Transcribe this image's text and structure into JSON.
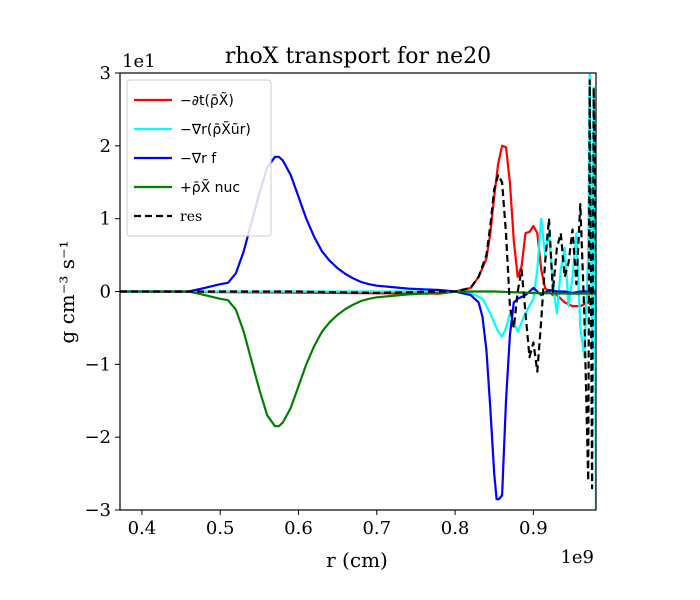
{
  "chart_data": {
    "type": "line",
    "title": "rhoX transport for ne20",
    "xlabel": "r (cm)",
    "ylabel": "g cm⁻³ s⁻¹",
    "x_offset_label": "1e9",
    "y_offset_label": "1e1",
    "xlim": [
      0.372,
      0.98
    ],
    "ylim": [
      -3,
      3
    ],
    "x_ticks": [
      0.4,
      0.5,
      0.6,
      0.7,
      0.8,
      0.9
    ],
    "x_tick_labels": [
      "0.4",
      "0.5",
      "0.6",
      "0.7",
      "0.8",
      "0.9"
    ],
    "y_ticks": [
      -3,
      -2,
      -1,
      0,
      1,
      2,
      3
    ],
    "y_tick_labels": [
      "−3",
      "−2",
      "−1",
      "0",
      "1",
      "2",
      "3"
    ],
    "grid": false,
    "legend_position": "top-left",
    "series": [
      {
        "name": "−∂t(ρ̄X̃)",
        "color": "#ff0000",
        "dash": "solid",
        "x": [
          0.372,
          0.78,
          0.8,
          0.82,
          0.83,
          0.84,
          0.845,
          0.85,
          0.855,
          0.86,
          0.865,
          0.87,
          0.875,
          0.88,
          0.885,
          0.89,
          0.895,
          0.9,
          0.905,
          0.91,
          0.915,
          0.92,
          0.925,
          0.93,
          0.94,
          0.95,
          0.96,
          0.97,
          0.975,
          0.98
        ],
        "y": [
          0,
          -0.03,
          0,
          0.05,
          0.2,
          0.45,
          0.8,
          1.3,
          1.75,
          2.0,
          1.98,
          1.5,
          0.7,
          0.2,
          0.35,
          0.8,
          0.82,
          0.9,
          0.8,
          0.3,
          0.05,
          0.0,
          -0.05,
          -0.05,
          -0.15,
          -0.2,
          -0.2,
          -0.15,
          -0.2,
          -0.1
        ]
      },
      {
        "name": "−∇r(ρ̄X̃ũr)",
        "color": "#00ffff",
        "dash": "solid",
        "x": [
          0.372,
          0.8,
          0.82,
          0.835,
          0.845,
          0.855,
          0.86,
          0.865,
          0.87,
          0.88,
          0.89,
          0.9,
          0.905,
          0.91,
          0.915,
          0.92,
          0.925,
          0.93,
          0.935,
          0.94,
          0.945,
          0.95,
          0.955,
          0.96,
          0.965,
          0.97,
          0.972,
          0.975,
          0.977,
          0.98
        ],
        "y": [
          0,
          0,
          -0.02,
          -0.1,
          -0.3,
          -0.55,
          -0.62,
          -0.5,
          -0.3,
          -0.55,
          -0.3,
          -0.1,
          0.3,
          1.0,
          0.5,
          0.8,
          0.1,
          -0.3,
          0.3,
          0.6,
          -0.2,
          0.2,
          0.8,
          -0.5,
          -0.9,
          0.5,
          3.0,
          -0.8,
          2.8,
          -3.0
        ]
      },
      {
        "name": "−∇r f",
        "color": "#0000ff",
        "dash": "solid",
        "x": [
          0.372,
          0.46,
          0.48,
          0.5,
          0.51,
          0.52,
          0.53,
          0.54,
          0.55,
          0.56,
          0.57,
          0.575,
          0.58,
          0.59,
          0.6,
          0.61,
          0.62,
          0.63,
          0.64,
          0.65,
          0.66,
          0.67,
          0.68,
          0.69,
          0.7,
          0.72,
          0.74,
          0.76,
          0.78,
          0.8,
          0.82,
          0.83,
          0.835,
          0.84,
          0.845,
          0.85,
          0.853,
          0.856,
          0.86,
          0.865,
          0.87,
          0.875,
          0.88,
          0.89,
          0.9,
          0.91,
          0.92,
          0.93,
          0.94,
          0.95,
          0.96,
          0.97,
          0.98
        ],
        "y": [
          0,
          0,
          0.05,
          0.1,
          0.12,
          0.25,
          0.55,
          0.95,
          1.35,
          1.7,
          1.85,
          1.85,
          1.8,
          1.6,
          1.3,
          1.0,
          0.75,
          0.55,
          0.42,
          0.32,
          0.24,
          0.18,
          0.13,
          0.1,
          0.08,
          0.06,
          0.04,
          0.03,
          0.02,
          0.0,
          -0.05,
          -0.15,
          -0.35,
          -0.8,
          -1.6,
          -2.5,
          -2.85,
          -2.85,
          -2.8,
          -1.5,
          -0.6,
          -0.15,
          -0.1,
          -0.05,
          0.05,
          -0.05,
          0.02,
          0.0,
          0.0,
          -0.02,
          0.0,
          0.0,
          0.0
        ]
      },
      {
        "name": "+ρ̄X̃ nuc",
        "color": "#008000",
        "dash": "solid",
        "x": [
          0.372,
          0.46,
          0.48,
          0.5,
          0.51,
          0.52,
          0.53,
          0.54,
          0.55,
          0.56,
          0.57,
          0.575,
          0.58,
          0.59,
          0.6,
          0.61,
          0.62,
          0.63,
          0.64,
          0.65,
          0.66,
          0.67,
          0.68,
          0.69,
          0.7,
          0.72,
          0.74,
          0.76,
          0.78,
          0.8,
          0.85,
          0.9,
          0.95,
          0.98
        ],
        "y": [
          0,
          0,
          -0.05,
          -0.1,
          -0.12,
          -0.25,
          -0.55,
          -0.95,
          -1.35,
          -1.7,
          -1.85,
          -1.85,
          -1.8,
          -1.6,
          -1.3,
          -1.0,
          -0.75,
          -0.55,
          -0.42,
          -0.32,
          -0.24,
          -0.18,
          -0.13,
          -0.1,
          -0.08,
          -0.06,
          -0.04,
          -0.03,
          -0.02,
          0.0,
          0.0,
          -0.02,
          -0.03,
          -0.03
        ]
      },
      {
        "name": "res",
        "color": "#000000",
        "dash": "dashed",
        "x": [
          0.372,
          0.6,
          0.7,
          0.78,
          0.8,
          0.82,
          0.83,
          0.84,
          0.845,
          0.85,
          0.855,
          0.86,
          0.865,
          0.87,
          0.875,
          0.88,
          0.885,
          0.89,
          0.895,
          0.9,
          0.905,
          0.91,
          0.915,
          0.92,
          0.925,
          0.93,
          0.935,
          0.94,
          0.945,
          0.95,
          0.955,
          0.96,
          0.965,
          0.97,
          0.972,
          0.975,
          0.977,
          0.98
        ],
        "y": [
          0,
          0,
          -0.02,
          0,
          0,
          0.05,
          0.2,
          0.5,
          0.9,
          1.4,
          1.6,
          1.5,
          0.8,
          -0.2,
          -0.5,
          0.0,
          0.3,
          -0.3,
          -0.9,
          -0.7,
          -1.1,
          -0.4,
          0.4,
          1.0,
          0.0,
          0.6,
          0.8,
          0.2,
          0.4,
          0.85,
          0.1,
          1.2,
          -0.3,
          -2.6,
          2.9,
          -2.7,
          2.8,
          0.5
        ]
      }
    ]
  }
}
